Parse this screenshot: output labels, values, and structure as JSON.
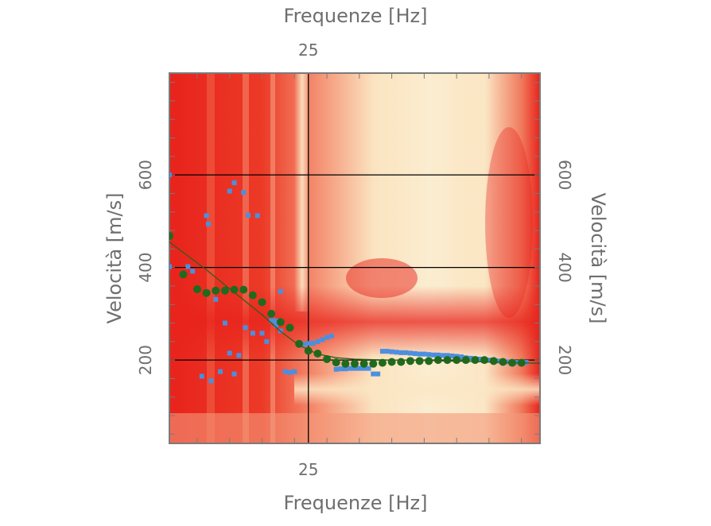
{
  "chart_data": {
    "type": "scatter",
    "xlabel_top": "Frequenze [Hz]",
    "xlabel_bottom": "Frequenze [Hz]",
    "ylabel_left": "Velocità [m/s]",
    "ylabel_right": "Velocità [m/s]",
    "xlim": [
      10,
      50
    ],
    "ylim": [
      20,
      820
    ],
    "x_ticks": [
      25
    ],
    "y_ticks": [
      200,
      400,
      600
    ],
    "grid": true,
    "colors": {
      "heatmap_low": "#e8231c",
      "heatmap_high": "#fbeccb",
      "picks": "#4a8fe0",
      "model_points": "#1e6b1e",
      "model_curve": "#2d5e1a",
      "grid": "#000000",
      "axis_text": "#6e6e6e"
    },
    "series": [
      {
        "marker": "square",
        "x": [
          10,
          10,
          16.5,
          17,
          18,
          18.5,
          19,
          20,
          20.5,
          21,
          21.5,
          22,
          22.5,
          23,
          23.5,
          24,
          24.5,
          25,
          25.5,
          26,
          26.5,
          27,
          27.5,
          28,
          28.5,
          29,
          29.5,
          30,
          30.5,
          31,
          31.5,
          32,
          32.5,
          33,
          33.5,
          34,
          34.5,
          35,
          35.5,
          36,
          36.5,
          37,
          37.5,
          38,
          38.5,
          39,
          39.5,
          40,
          40.5,
          41,
          41.5,
          42,
          42.5,
          43,
          43.5,
          44,
          44.5,
          45,
          45.5,
          46,
          46.5,
          47,
          47.5,
          48,
          48.5,
          12,
          12.5,
          14,
          14.2,
          15,
          16,
          16.5,
          17.5,
          18.2,
          19.5,
          21.5,
          22,
          13.5,
          14.5,
          15.5,
          17
        ],
        "y": [
          600,
          402,
          565,
          583,
          562,
          513,
          258,
          258,
          240,
          285,
          285,
          263,
          175,
          173,
          175,
          236,
          234,
          236,
          236,
          240,
          244,
          249,
          252,
          180,
          181,
          181,
          182,
          182,
          182,
          182,
          182,
          170,
          170,
          219,
          219,
          218,
          217,
          216,
          216,
          215,
          214,
          213,
          213,
          212,
          211,
          211,
          210,
          210,
          209,
          208,
          207,
          205,
          204,
          203,
          202,
          201,
          200,
          199,
          198,
          197,
          196,
          196,
          195,
          195,
          195,
          402,
          392,
          512,
          494,
          331,
          280,
          215,
          210,
          270,
          512,
          275,
          348,
          165,
          155,
          175,
          170
        ]
      },
      {
        "marker": "circle",
        "x": [
          10,
          11.5,
          13,
          14,
          15,
          16,
          17,
          18,
          19,
          20,
          21,
          22,
          23,
          24,
          25,
          26,
          27,
          28,
          29,
          30,
          31,
          32,
          33,
          34,
          35,
          36,
          37,
          38,
          39,
          40,
          41,
          42,
          43,
          44,
          45,
          46,
          47,
          48
        ],
        "y": [
          468,
          385,
          353,
          345,
          350,
          350,
          352,
          352,
          340,
          325,
          300,
          282,
          270,
          235,
          220,
          214,
          202,
          195,
          192,
          192,
          192,
          192,
          194,
          196,
          196,
          198,
          198,
          198,
          200,
          200,
          200,
          200,
          200,
          200,
          198,
          196,
          194,
          194
        ]
      },
      {
        "marker": "line",
        "x": [
          10,
          12,
          14,
          16,
          18,
          20,
          22,
          24,
          26,
          28,
          30,
          32,
          34,
          36,
          38,
          40,
          42,
          44,
          46,
          48,
          50
        ],
        "y": [
          455,
          425,
          395,
          362,
          330,
          298,
          262,
          232,
          213,
          205,
          202,
          201,
          200,
          200,
          199,
          198,
          197,
          196,
          195,
          194,
          193
        ]
      }
    ]
  }
}
